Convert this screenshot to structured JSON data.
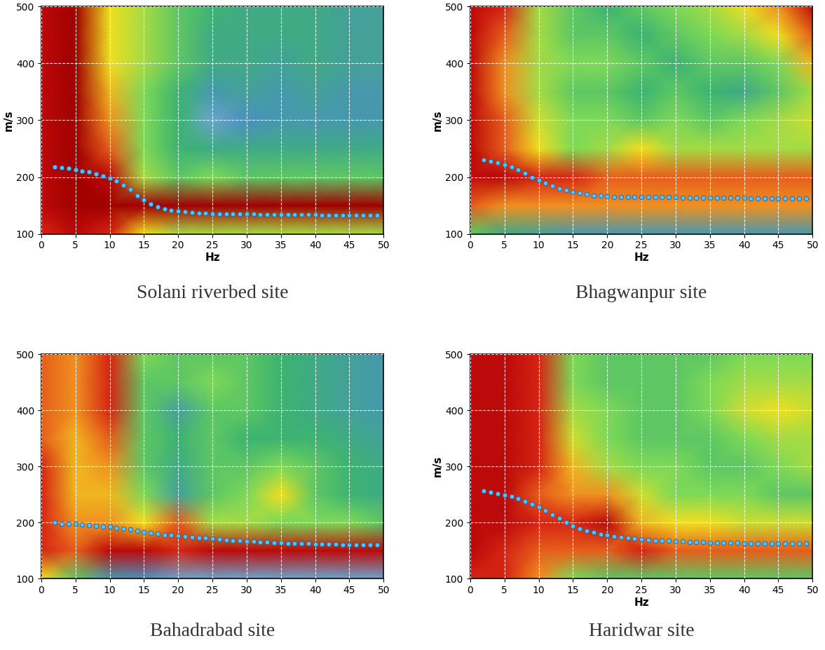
{
  "chart_data": [
    {
      "type": "heatmap",
      "title": "Solani riverbed site",
      "x_label": "Hz",
      "y_label": "m/s",
      "xlim": [
        0,
        50
      ],
      "ylim": [
        100,
        500
      ],
      "xticks": [
        0,
        5,
        10,
        15,
        20,
        25,
        30,
        35,
        40,
        45,
        50
      ],
      "yticks": [
        100,
        200,
        300,
        400,
        500
      ],
      "grid": true,
      "color_range": [
        0,
        1
      ],
      "cells": {
        "x": [
          0,
          5,
          10,
          15,
          20,
          25,
          30,
          35,
          40,
          45,
          50
        ],
        "y": [
          100,
          150,
          200,
          250,
          300,
          350,
          400,
          450,
          500
        ],
        "values": [
          [
            0.9,
            0.95,
            0.9,
            0.7,
            0.6,
            0.6,
            0.6,
            0.6,
            0.6,
            0.6,
            0.6
          ],
          [
            0.95,
            1,
            1,
            1,
            1,
            1,
            1,
            1,
            1,
            1,
            1
          ],
          [
            0.95,
            1,
            0.95,
            0.6,
            0.5,
            0.55,
            0.5,
            0.5,
            0.5,
            0.5,
            0.5
          ],
          [
            0.95,
            1,
            0.85,
            0.55,
            0.45,
            0.4,
            0.4,
            0.4,
            0.4,
            0.4,
            0.4
          ],
          [
            0.95,
            1,
            0.8,
            0.55,
            0.45,
            0.2,
            0.25,
            0.3,
            0.3,
            0.3,
            0.3
          ],
          [
            0.95,
            1,
            0.75,
            0.55,
            0.45,
            0.3,
            0.35,
            0.3,
            0.35,
            0.3,
            0.3
          ],
          [
            0.95,
            1,
            0.7,
            0.6,
            0.5,
            0.4,
            0.4,
            0.35,
            0.4,
            0.35,
            0.35
          ],
          [
            0.95,
            1,
            0.7,
            0.6,
            0.5,
            0.4,
            0.4,
            0.4,
            0.4,
            0.35,
            0.35
          ],
          [
            0.95,
            1,
            0.7,
            0.6,
            0.5,
            0.45,
            0.4,
            0.4,
            0.4,
            0.35,
            0.35
          ]
        ]
      },
      "series": [
        {
          "type": "scatter",
          "color": "#4fc3f7",
          "marker": "o",
          "x": [
            2,
            3,
            4,
            5,
            6,
            7,
            8,
            9,
            10,
            11,
            12,
            13,
            14,
            15,
            16,
            17,
            18,
            19,
            20,
            21,
            22,
            23,
            24,
            25,
            26,
            27,
            28,
            29,
            30,
            31,
            32,
            33,
            34,
            35,
            36,
            37,
            38,
            39,
            40,
            41,
            42,
            43,
            44,
            45,
            46,
            47,
            48,
            49
          ],
          "values": [
            218,
            217,
            215,
            213,
            211,
            209,
            206,
            202,
            198,
            193,
            186,
            178,
            168,
            160,
            153,
            148,
            144,
            142,
            140,
            139,
            138,
            137,
            137,
            136,
            136,
            136,
            135,
            135,
            135,
            135,
            134,
            134,
            134,
            134,
            134,
            134,
            134,
            134,
            134,
            133,
            133,
            133,
            133,
            133,
            133,
            133,
            133,
            133
          ]
        }
      ]
    },
    {
      "type": "heatmap",
      "title": "Bhagwanpur site",
      "x_label": "Hz",
      "y_label": "m/s",
      "xlim": [
        0,
        50
      ],
      "ylim": [
        100,
        500
      ],
      "xticks": [
        0,
        5,
        10,
        15,
        20,
        25,
        30,
        35,
        40,
        45,
        50
      ],
      "yticks": [
        100,
        200,
        300,
        400,
        500
      ],
      "grid": true,
      "color_range": [
        0,
        1
      ],
      "cells": {
        "x": [
          0,
          5,
          10,
          15,
          20,
          25,
          30,
          35,
          40,
          45,
          50
        ],
        "y": [
          100,
          150,
          200,
          250,
          300,
          350,
          400,
          450,
          500
        ],
        "values": [
          [
            0.5,
            0.4,
            0.35,
            0.3,
            0.3,
            0.3,
            0.3,
            0.3,
            0.3,
            0.3,
            0.3
          ],
          [
            0.85,
            0.8,
            0.8,
            0.8,
            0.8,
            0.8,
            0.8,
            0.8,
            0.8,
            0.8,
            0.8
          ],
          [
            0.95,
            0.95,
            0.9,
            0.9,
            0.85,
            0.85,
            0.85,
            0.85,
            0.85,
            0.85,
            0.85
          ],
          [
            0.95,
            0.85,
            0.7,
            0.55,
            0.6,
            0.7,
            0.6,
            0.6,
            0.6,
            0.6,
            0.6
          ],
          [
            0.95,
            0.85,
            0.65,
            0.55,
            0.55,
            0.5,
            0.55,
            0.5,
            0.55,
            0.6,
            0.65
          ],
          [
            0.95,
            0.8,
            0.6,
            0.5,
            0.5,
            0.45,
            0.5,
            0.45,
            0.4,
            0.5,
            0.6
          ],
          [
            0.95,
            0.8,
            0.6,
            0.55,
            0.55,
            0.5,
            0.45,
            0.5,
            0.5,
            0.55,
            0.75
          ],
          [
            0.95,
            0.85,
            0.6,
            0.5,
            0.5,
            0.45,
            0.5,
            0.55,
            0.6,
            0.7,
            0.85
          ],
          [
            0.95,
            0.9,
            0.6,
            0.5,
            0.45,
            0.5,
            0.55,
            0.6,
            0.7,
            0.8,
            0.95
          ]
        ]
      },
      "series": [
        {
          "type": "scatter",
          "color": "#4fc3f7",
          "marker": "o",
          "x": [
            2,
            3,
            4,
            5,
            6,
            7,
            8,
            9,
            10,
            11,
            12,
            13,
            14,
            15,
            16,
            17,
            18,
            19,
            20,
            21,
            22,
            23,
            24,
            25,
            26,
            27,
            28,
            29,
            30,
            31,
            32,
            33,
            34,
            35,
            36,
            37,
            38,
            39,
            40,
            41,
            42,
            43,
            44,
            45,
            46,
            47,
            48,
            49
          ],
          "values": [
            230,
            228,
            225,
            222,
            218,
            213,
            207,
            200,
            195,
            190,
            185,
            180,
            177,
            174,
            172,
            170,
            168,
            167,
            166,
            165,
            165,
            165,
            165,
            165,
            165,
            165,
            165,
            165,
            165,
            164,
            164,
            164,
            164,
            164,
            164,
            164,
            164,
            164,
            164,
            163,
            163,
            163,
            163,
            163,
            163,
            163,
            163,
            163
          ]
        }
      ]
    },
    {
      "type": "heatmap",
      "title": "Bahadrabad site",
      "xlim": [
        0,
        50
      ],
      "ylim": [
        100,
        500
      ],
      "xticks": [
        0,
        5,
        10,
        15,
        20,
        25,
        30,
        35,
        40,
        45,
        50
      ],
      "yticks": [
        100,
        200,
        300,
        400,
        500
      ],
      "grid": true,
      "color_range": [
        0,
        1
      ],
      "cells": {
        "x": [
          0,
          5,
          10,
          15,
          20,
          25,
          30,
          35,
          40,
          45,
          50
        ],
        "y": [
          100,
          150,
          200,
          250,
          300,
          350,
          400,
          450,
          500
        ],
        "values": [
          [
            0.7,
            0.5,
            0.3,
            0.25,
            0.2,
            0.2,
            0.2,
            0.2,
            0.2,
            0.2,
            0.2
          ],
          [
            0.9,
            0.85,
            0.95,
            0.95,
            0.9,
            0.95,
            0.95,
            0.95,
            0.95,
            0.95,
            0.95
          ],
          [
            0.9,
            0.8,
            0.8,
            0.7,
            0.85,
            0.6,
            0.6,
            0.55,
            0.55,
            0.55,
            0.5
          ],
          [
            0.9,
            0.75,
            0.75,
            0.55,
            0.35,
            0.5,
            0.55,
            0.7,
            0.5,
            0.45,
            0.4
          ],
          [
            0.9,
            0.75,
            0.8,
            0.5,
            0.4,
            0.5,
            0.5,
            0.55,
            0.5,
            0.45,
            0.4
          ],
          [
            0.85,
            0.75,
            0.85,
            0.5,
            0.45,
            0.5,
            0.45,
            0.45,
            0.45,
            0.4,
            0.35
          ],
          [
            0.85,
            0.8,
            0.9,
            0.5,
            0.35,
            0.5,
            0.5,
            0.45,
            0.4,
            0.35,
            0.3
          ],
          [
            0.85,
            0.8,
            0.9,
            0.5,
            0.5,
            0.55,
            0.5,
            0.45,
            0.4,
            0.35,
            0.3
          ],
          [
            0.85,
            0.8,
            0.9,
            0.55,
            0.5,
            0.5,
            0.5,
            0.45,
            0.4,
            0.35,
            0.3
          ]
        ]
      },
      "series": [
        {
          "type": "scatter",
          "color": "#4fc3f7",
          "marker": "o",
          "x": [
            2,
            3,
            4,
            5,
            6,
            7,
            8,
            9,
            10,
            11,
            12,
            13,
            14,
            15,
            16,
            17,
            18,
            19,
            20,
            21,
            22,
            23,
            24,
            25,
            26,
            27,
            28,
            29,
            30,
            31,
            32,
            33,
            34,
            35,
            36,
            37,
            38,
            39,
            40,
            41,
            42,
            43,
            44,
            45,
            46,
            47,
            48,
            49
          ],
          "values": [
            200,
            198,
            198,
            197,
            196,
            195,
            194,
            193,
            192,
            190,
            189,
            187,
            185,
            183,
            181,
            180,
            178,
            177,
            176,
            175,
            174,
            173,
            172,
            171,
            170,
            169,
            168,
            167,
            166,
            166,
            165,
            165,
            164,
            164,
            163,
            163,
            162,
            162,
            161,
            161,
            161,
            161,
            160,
            160,
            160,
            160,
            160,
            160
          ]
        }
      ]
    },
    {
      "type": "heatmap",
      "title": "Haridwar site",
      "x_label": "Hz",
      "y_label": "m/s",
      "xlim": [
        0,
        50
      ],
      "ylim": [
        100,
        500
      ],
      "xticks": [
        0,
        5,
        10,
        15,
        20,
        25,
        30,
        35,
        40,
        45,
        50
      ],
      "yticks": [
        100,
        200,
        300,
        400,
        500
      ],
      "grid": true,
      "color_range": [
        0,
        1
      ],
      "cells": {
        "x": [
          0,
          5,
          10,
          15,
          20,
          25,
          30,
          35,
          40,
          45,
          50
        ],
        "y": [
          100,
          150,
          200,
          250,
          300,
          350,
          400,
          450,
          500
        ],
        "values": [
          [
            0.9,
            0.9,
            0.8,
            0.55,
            0.5,
            0.5,
            0.5,
            0.5,
            0.5,
            0.5,
            0.5
          ],
          [
            0.95,
            0.9,
            0.85,
            0.85,
            0.85,
            0.9,
            0.85,
            0.85,
            0.85,
            0.85,
            0.85
          ],
          [
            0.95,
            0.95,
            0.9,
            0.9,
            0.95,
            0.75,
            0.7,
            0.7,
            0.65,
            0.65,
            0.65
          ],
          [
            0.95,
            0.95,
            0.85,
            0.8,
            0.8,
            0.65,
            0.55,
            0.55,
            0.55,
            0.5,
            0.5
          ],
          [
            0.95,
            0.95,
            0.9,
            0.75,
            0.6,
            0.55,
            0.55,
            0.5,
            0.5,
            0.55,
            0.6
          ],
          [
            0.95,
            0.95,
            0.9,
            0.65,
            0.55,
            0.5,
            0.5,
            0.5,
            0.55,
            0.6,
            0.6
          ],
          [
            0.95,
            0.95,
            0.9,
            0.6,
            0.55,
            0.5,
            0.5,
            0.55,
            0.65,
            0.7,
            0.65
          ],
          [
            0.95,
            0.95,
            0.9,
            0.55,
            0.5,
            0.5,
            0.5,
            0.55,
            0.6,
            0.6,
            0.6
          ],
          [
            0.95,
            0.95,
            0.9,
            0.55,
            0.5,
            0.5,
            0.5,
            0.5,
            0.55,
            0.55,
            0.55
          ]
        ]
      },
      "series": [
        {
          "type": "scatter",
          "color": "#4fc3f7",
          "marker": "o",
          "x": [
            2,
            3,
            4,
            5,
            6,
            7,
            8,
            9,
            10,
            11,
            12,
            13,
            14,
            15,
            16,
            17,
            18,
            19,
            20,
            21,
            22,
            23,
            24,
            25,
            26,
            27,
            28,
            29,
            30,
            31,
            32,
            33,
            34,
            35,
            36,
            37,
            38,
            39,
            40,
            41,
            42,
            43,
            44,
            45,
            46,
            47,
            48,
            49
          ],
          "values": [
            256,
            254,
            252,
            249,
            246,
            242,
            238,
            233,
            227,
            221,
            214,
            207,
            200,
            194,
            189,
            185,
            182,
            179,
            177,
            175,
            174,
            172,
            171,
            170,
            169,
            168,
            167,
            167,
            166,
            166,
            165,
            165,
            165,
            164,
            164,
            164,
            164,
            164,
            163,
            163,
            163,
            163,
            163,
            162,
            162,
            162,
            162,
            162
          ]
        }
      ]
    }
  ]
}
